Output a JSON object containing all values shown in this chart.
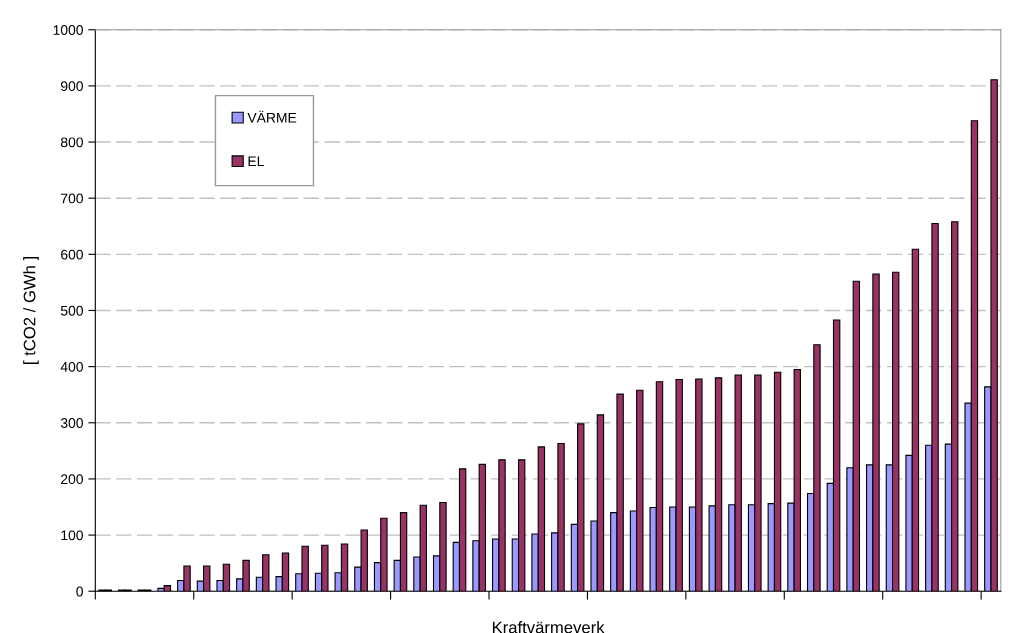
{
  "chart_data": {
    "type": "bar",
    "categories": [
      null,
      null,
      null,
      null,
      null,
      null,
      null,
      null,
      null,
      null,
      null,
      null,
      null,
      null,
      null,
      null,
      null,
      null,
      null,
      null,
      null,
      null,
      null,
      null,
      null,
      null,
      null,
      null,
      null,
      null,
      null,
      null,
      null,
      null,
      null,
      null,
      null,
      null,
      null,
      null,
      null,
      null,
      null,
      null,
      null,
      null
    ],
    "series": [
      {
        "name": "VÄRME",
        "color": "#9999ff",
        "values": [
          2,
          2,
          2,
          5,
          19,
          18,
          19,
          22,
          25,
          26,
          31,
          32,
          33,
          43,
          51,
          55,
          61,
          63,
          87,
          90,
          93,
          93,
          102,
          104,
          119,
          125,
          140,
          143,
          149,
          150,
          150,
          152,
          154,
          154,
          156,
          157,
          174,
          192,
          220,
          225,
          225,
          242,
          260,
          262,
          335,
          364
        ]
      },
      {
        "name": "EL",
        "color": "#993366",
        "values": [
          2,
          2,
          2,
          10,
          45,
          45,
          48,
          55,
          65,
          68,
          80,
          82,
          84,
          109,
          130,
          140,
          153,
          158,
          218,
          226,
          234,
          234,
          257,
          263,
          298,
          314,
          351,
          358,
          373,
          377,
          378,
          380,
          385,
          385,
          390,
          395,
          439,
          483,
          552,
          565,
          568,
          609,
          655,
          658,
          838,
          911
        ]
      }
    ],
    "xlabel": "Kraftvärmeverk",
    "ylabel": "[ tCO2 / GWh ]",
    "ylim": [
      0,
      1000
    ],
    "yticks": [
      0,
      100,
      200,
      300,
      400,
      500,
      600,
      700,
      800,
      900,
      1000
    ],
    "grid": "y",
    "legend": "top left",
    "tick_labels": "y"
  }
}
